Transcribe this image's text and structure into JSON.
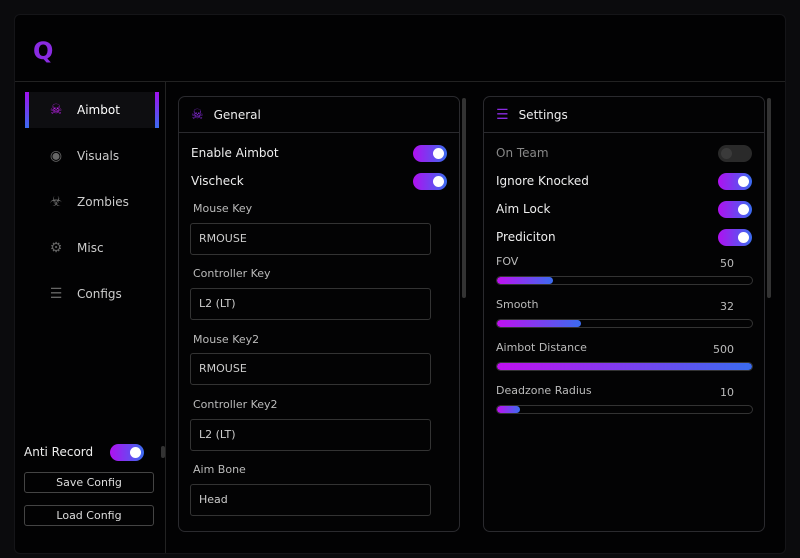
{
  "app": {
    "logo": "Q"
  },
  "sidebar": {
    "items": [
      {
        "label": "Aimbot",
        "icon": "skull-icon",
        "active": true
      },
      {
        "label": "Visuals",
        "icon": "eye-icon"
      },
      {
        "label": "Zombies",
        "icon": "biohazard-icon"
      },
      {
        "label": "Misc",
        "icon": "gear-icon"
      },
      {
        "label": "Configs",
        "icon": "sliders-icon"
      }
    ],
    "anti_record": {
      "label": "Anti Record",
      "on": true
    },
    "save": "Save Config",
    "load": "Load Config"
  },
  "general": {
    "title": "General",
    "enable_aimbot": "Enable Aimbot",
    "vischeck": "Vischeck",
    "fields": [
      {
        "label": "Mouse Key",
        "value": "RMOUSE"
      },
      {
        "label": "Controller Key",
        "value": "L2 (LT)"
      },
      {
        "label": "Mouse Key2",
        "value": "RMOUSE"
      },
      {
        "label": "Controller Key2",
        "value": "L2 (LT)"
      },
      {
        "label": "Aim Bone",
        "value": "Head"
      }
    ]
  },
  "settings": {
    "title": "Settings",
    "toggles": [
      {
        "label": "On Team",
        "on": false
      },
      {
        "label": "Ignore Knocked",
        "on": true
      },
      {
        "label": "Aim Lock",
        "on": true
      },
      {
        "label": "Prediciton",
        "on": true
      }
    ],
    "sliders": [
      {
        "label": "FOV",
        "value": "50",
        "fill": 22
      },
      {
        "label": "Smooth",
        "value": "32",
        "fill": 33
      },
      {
        "label": "Aimbot Distance",
        "value": "500",
        "fill": 100
      },
      {
        "label": "Deadzone Radius",
        "value": "10",
        "fill": 9
      }
    ]
  },
  "colors": {
    "accent_start": "#c010f0",
    "accent_end": "#3a6cf0"
  }
}
